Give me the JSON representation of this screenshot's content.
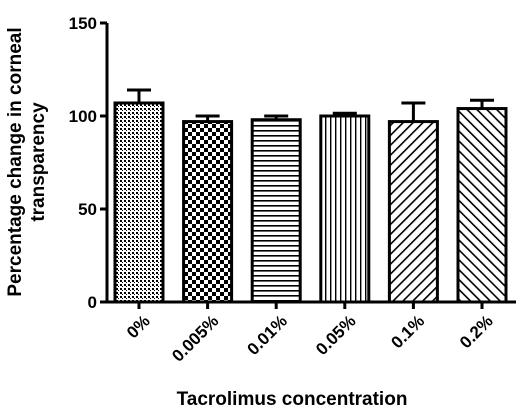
{
  "chart_data": {
    "type": "bar",
    "categories": [
      "0%",
      "0.005%",
      "0.01%",
      "0.05%",
      "0.1%",
      "0.2%"
    ],
    "values": [
      107,
      97,
      98,
      100,
      97,
      104
    ],
    "errors": [
      7,
      3,
      2,
      1.5,
      10,
      4.5
    ],
    "patterns": [
      "dense-dots",
      "checker",
      "horizontal-lines",
      "vertical-lines",
      "diagonal-lines",
      "diagonal-lines"
    ],
    "xlabel": "Tacrolimus concentration",
    "ylabel_line1": "Percentage change in corneal",
    "ylabel_line2": "transparency",
    "ylim": [
      0,
      150
    ],
    "yticks": [
      "0",
      "50",
      "100",
      "150"
    ],
    "grid": false
  }
}
